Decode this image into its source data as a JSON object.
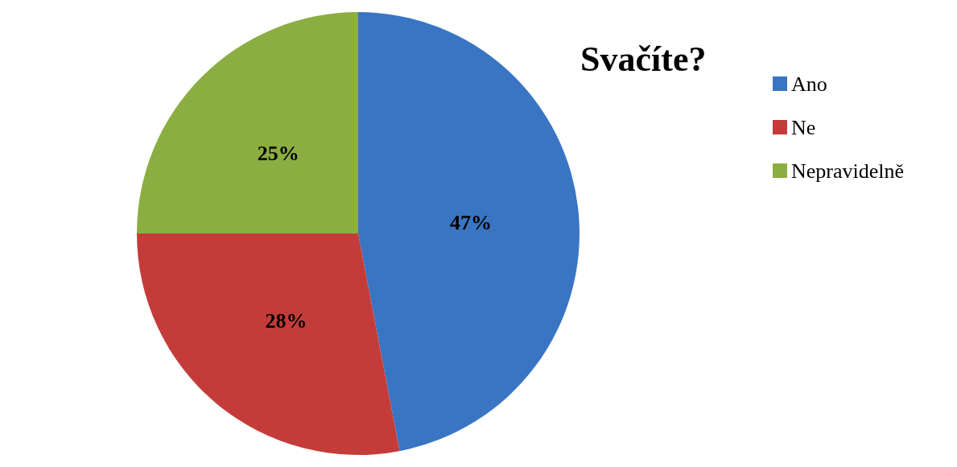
{
  "chart_data": {
    "type": "pie",
    "title": "Svačíte?",
    "categories": [
      "Ano",
      "Ne",
      "Nepravidelně"
    ],
    "values": [
      47,
      28,
      25
    ],
    "colors": [
      "#3a75c3",
      "#c43c39",
      "#8aae42"
    ],
    "value_labels": [
      "47%",
      "28%",
      "25%"
    ],
    "legend": "right"
  }
}
